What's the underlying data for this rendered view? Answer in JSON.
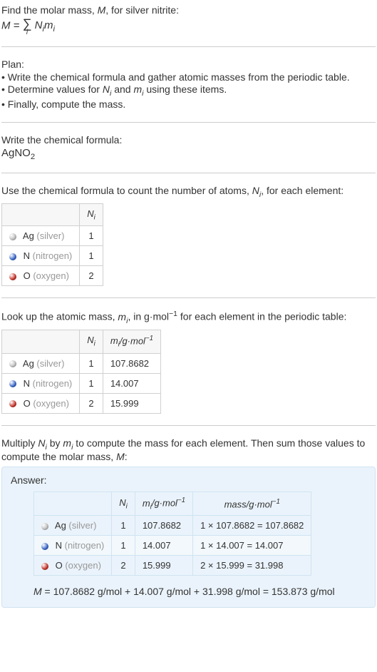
{
  "intro": {
    "line1_a": "Find the molar mass, ",
    "line1_M": "M",
    "line1_b": ", for silver nitrite:",
    "formula_M": "M",
    "formula_eq": " = ",
    "formula_sigma": "∑",
    "formula_i": "i",
    "formula_Ni": "N",
    "formula_Ni_sub": "i",
    "formula_mi": "m",
    "formula_mi_sub": "i"
  },
  "plan": {
    "title": "Plan:",
    "b1_a": "• Write the chemical formula and gather atomic masses from the periodic table.",
    "b2_a": "• Determine values for ",
    "b2_Ni": "N",
    "b2_Ni_sub": "i",
    "b2_b": " and ",
    "b2_mi": "m",
    "b2_mi_sub": "i",
    "b2_c": " using these items.",
    "b3": "• Finally, compute the mass."
  },
  "formula": {
    "title": "Write the chemical formula:",
    "chem_a": "AgNO",
    "chem_sub": "2"
  },
  "count": {
    "title_a": "Use the chemical formula to count the number of atoms, ",
    "title_Ni": "N",
    "title_Ni_sub": "i",
    "title_b": ", for each element:",
    "hdr_blank": "",
    "hdr_Ni": "N",
    "hdr_Ni_sub": "i",
    "rows": [
      {
        "color": "#bfbfbf",
        "sym": "Ag",
        "name": " (silver)",
        "n": "1"
      },
      {
        "color": "#3a66c9",
        "sym": "N",
        "name": " (nitrogen)",
        "n": "1"
      },
      {
        "color": "#c5342a",
        "sym": "O",
        "name": " (oxygen)",
        "n": "2"
      }
    ]
  },
  "lookup": {
    "title_a": "Look up the atomic mass, ",
    "title_mi": "m",
    "title_mi_sub": "i",
    "title_b": ", in g·mol",
    "title_sup": "−1",
    "title_c": " for each element in the periodic table:",
    "hdr_Ni": "N",
    "hdr_Ni_sub": "i",
    "hdr_mi": "m",
    "hdr_mi_sub": "i",
    "hdr_unit_a": "/g·mol",
    "hdr_unit_sup": "−1",
    "rows": [
      {
        "color": "#bfbfbf",
        "sym": "Ag",
        "name": " (silver)",
        "n": "1",
        "m": "107.8682"
      },
      {
        "color": "#3a66c9",
        "sym": "N",
        "name": " (nitrogen)",
        "n": "1",
        "m": "14.007"
      },
      {
        "color": "#c5342a",
        "sym": "O",
        "name": " (oxygen)",
        "n": "2",
        "m": "15.999"
      }
    ]
  },
  "compute": {
    "title_a": "Multiply ",
    "title_Ni": "N",
    "title_Ni_sub": "i",
    "title_b": " by ",
    "title_mi": "m",
    "title_mi_sub": "i",
    "title_c": " to compute the mass for each element. Then sum those values to compute the molar mass, ",
    "title_M": "M",
    "title_d": ":"
  },
  "answer": {
    "label": "Answer:",
    "hdr_Ni": "N",
    "hdr_Ni_sub": "i",
    "hdr_mi": "m",
    "hdr_mi_sub": "i",
    "hdr_mi_unit_a": "/g·mol",
    "hdr_mi_unit_sup": "−1",
    "hdr_mass_a": "mass/g·mol",
    "hdr_mass_sup": "−1",
    "rows": [
      {
        "color": "#bfbfbf",
        "sym": "Ag",
        "name": " (silver)",
        "n": "1",
        "m": "107.8682",
        "calc": "1 × 107.8682 = 107.8682"
      },
      {
        "color": "#3a66c9",
        "sym": "N",
        "name": " (nitrogen)",
        "n": "1",
        "m": "14.007",
        "calc": "1 × 14.007 = 14.007"
      },
      {
        "color": "#c5342a",
        "sym": "O",
        "name": " (oxygen)",
        "n": "2",
        "m": "15.999",
        "calc": "2 × 15.999 = 31.998"
      }
    ],
    "final_M": "M",
    "final_eq": " = 107.8682 g/mol + 14.007 g/mol + 31.998 g/mol = 153.873 g/mol"
  }
}
